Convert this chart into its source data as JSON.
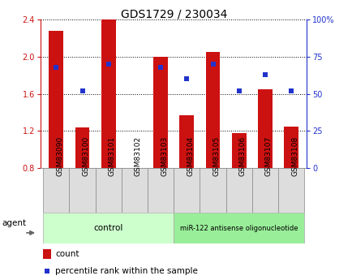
{
  "title": "GDS1729 / 230034",
  "samples": [
    "GSM83090",
    "GSM83100",
    "GSM83101",
    "GSM83102",
    "GSM83103",
    "GSM83104",
    "GSM83105",
    "GSM83106",
    "GSM83107",
    "GSM83108"
  ],
  "counts": [
    2.28,
    1.24,
    2.4,
    0.8,
    2.0,
    1.37,
    2.05,
    1.18,
    1.65,
    1.25
  ],
  "percentiles": [
    68,
    52,
    70,
    null,
    68,
    60,
    70,
    52,
    63,
    52
  ],
  "bar_bottom": 0.8,
  "ylim_left": [
    0.8,
    2.4
  ],
  "ylim_right": [
    0,
    100
  ],
  "yticks_left": [
    0.8,
    1.2,
    1.6,
    2.0,
    2.4
  ],
  "yticks_right": [
    0,
    25,
    50,
    75,
    100
  ],
  "bar_color": "#cc1111",
  "dot_color": "#2233cc",
  "background_color": "#ffffff",
  "control_color": "#ccffcc",
  "mir_color": "#99ee99",
  "sample_box_color": "#dddddd",
  "groups": [
    {
      "label": "control",
      "count": 5
    },
    {
      "label": "miR-122 antisense oligonucleotide",
      "count": 5
    }
  ],
  "agent_label": "agent",
  "legend_count": "count",
  "legend_pct": "percentile rank within the sample",
  "title_fontsize": 10,
  "tick_fontsize": 7,
  "bar_width": 0.55
}
